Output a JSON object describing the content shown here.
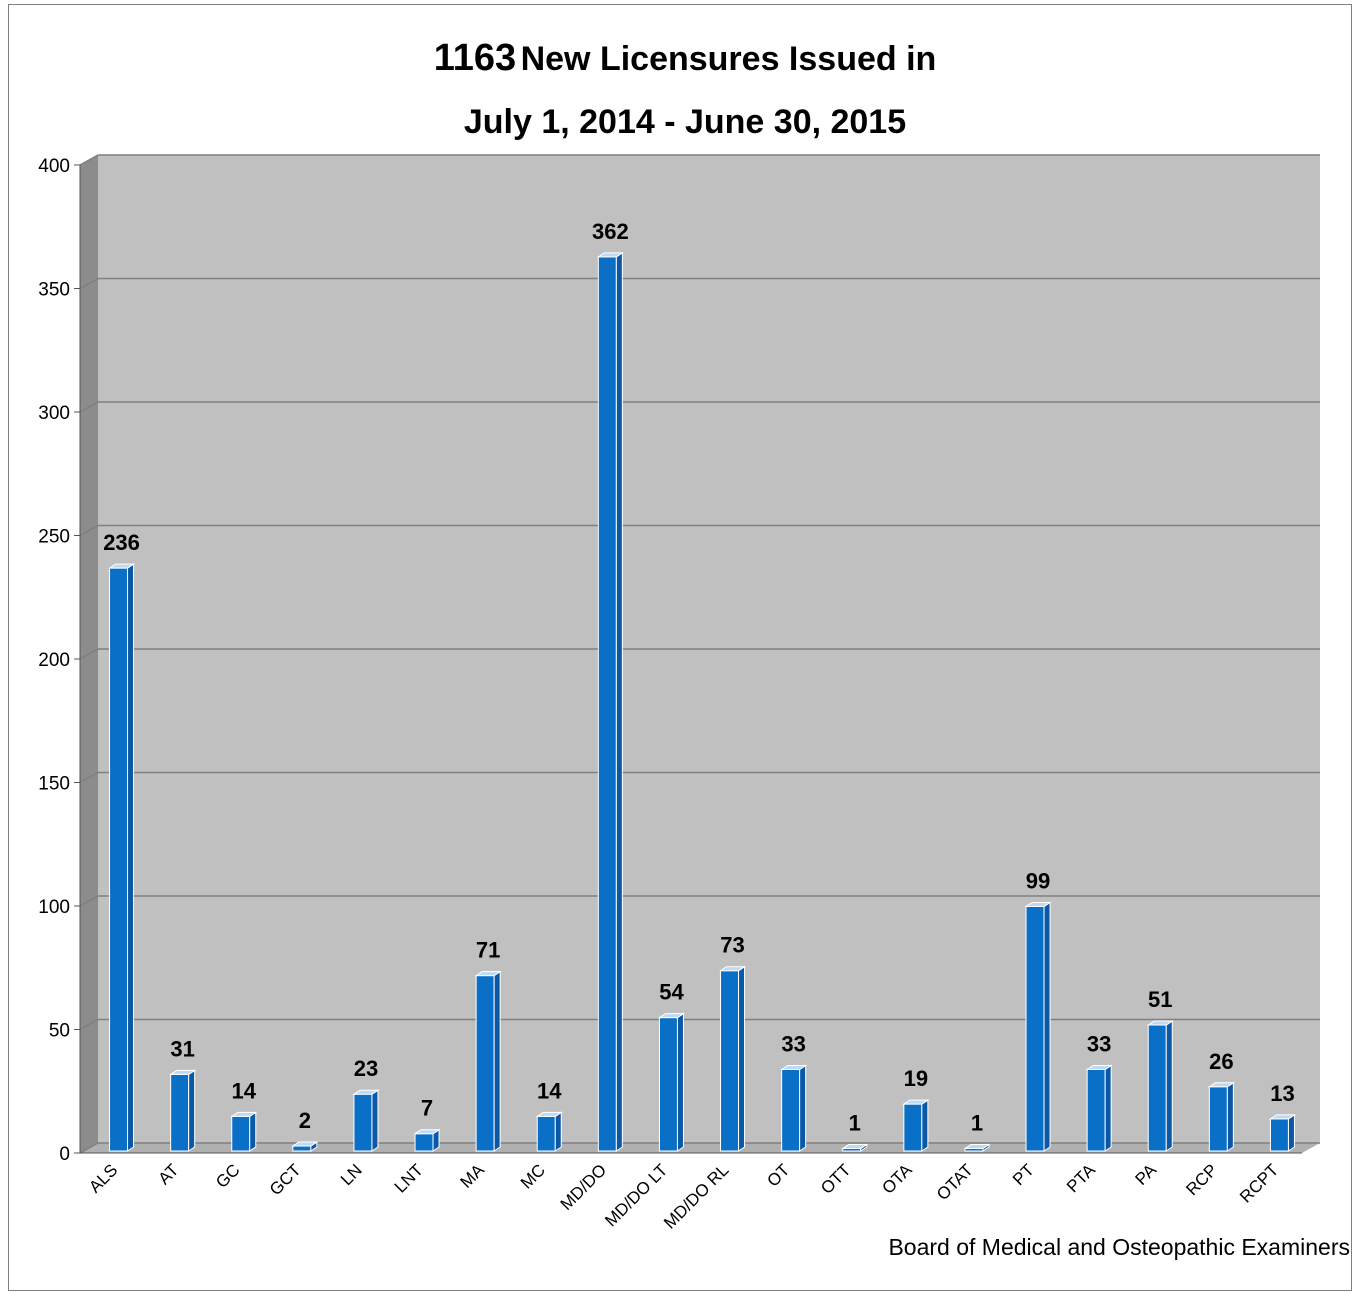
{
  "chart_data": {
    "type": "bar",
    "title_number": "1163",
    "title_line1_rest": "New Licensures Issued in",
    "title_line2": "July 1, 2014 - June 30, 2015",
    "categories": [
      "ALS",
      "AT",
      "GC",
      "GCT",
      "LN",
      "LNT",
      "MA",
      "MC",
      "MD/DO",
      "MD/DO LT",
      "MD/DO RL",
      "OT",
      "OTT",
      "OTA",
      "OTAT",
      "PT",
      "PTA",
      "PA",
      "RCP",
      "RCPT"
    ],
    "values": [
      236,
      31,
      14,
      2,
      23,
      7,
      71,
      14,
      362,
      54,
      73,
      33,
      1,
      19,
      1,
      99,
      33,
      51,
      26,
      13
    ],
    "ylim": [
      0,
      400
    ],
    "yticks": [
      0,
      50,
      100,
      150,
      200,
      250,
      300,
      350,
      400
    ],
    "grid": true,
    "legend": "none",
    "source_note": "Board of Medical and Osteopathic Examiners",
    "colors": {
      "bar_front": "#0a6fc7",
      "bar_top": "#bcd9f5",
      "bar_side": "#0a58a6",
      "plot_bg": "#c0c0c0",
      "wall_side": "#8c8c8c",
      "floor": "#b0b0b0",
      "grid": "#7f7f7f"
    }
  }
}
